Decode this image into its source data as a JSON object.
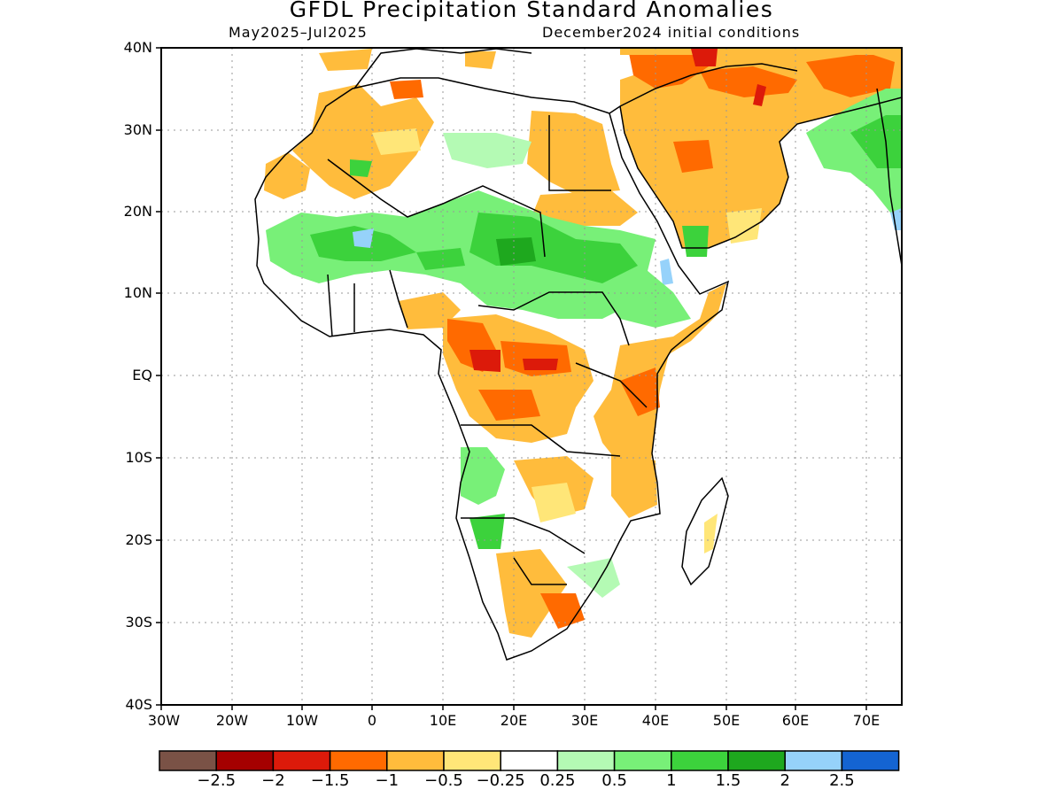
{
  "title": "GFDL Precipitation Standard Anomalies",
  "subtitle_left": "May2025–Jul2025",
  "subtitle_right": "December2024 initial conditions",
  "lat_labels": [
    "40N",
    "30N",
    "20N",
    "10N",
    "EQ",
    "10S",
    "20S",
    "30S",
    "40S"
  ],
  "lon_labels": [
    "30W",
    "20W",
    "10W",
    "0",
    "10E",
    "20E",
    "30E",
    "40E",
    "50E",
    "60E",
    "70E"
  ],
  "colorbar": {
    "colors": [
      "#7a5246",
      "#a50000",
      "#dc1a0a",
      "#ff6a00",
      "#ffbc3c",
      "#ffe678",
      "#ffffff",
      "#b4fab4",
      "#78f078",
      "#3cd23c",
      "#1ea81e",
      "#96d2fa",
      "#1464d2"
    ],
    "labels": [
      "−2.5",
      "−2",
      "−1.5",
      "−1",
      "−0.5",
      "−0.25",
      "0.25",
      "0.5",
      "1",
      "1.5",
      "2",
      "2.5"
    ]
  },
  "map": {
    "lon_range": [
      -30,
      75
    ],
    "lat_range": [
      -40,
      40
    ],
    "grid": true,
    "variable": "precipitation standard anomaly"
  }
}
